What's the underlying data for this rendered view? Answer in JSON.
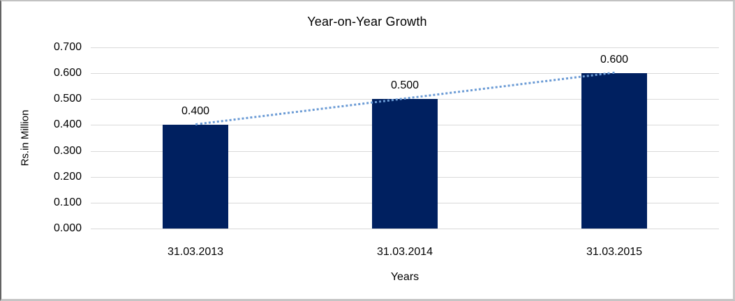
{
  "chart_data": {
    "type": "bar",
    "title": "Year-on-Year Growth",
    "xlabel": "Years",
    "ylabel": "Rs.in Million",
    "categories": [
      "31.03.2013",
      "31.03.2014",
      "31.03.2015"
    ],
    "values": [
      0.4,
      0.5,
      0.6
    ],
    "data_labels": [
      "0.400",
      "0.500",
      "0.600"
    ],
    "yticks": [
      "0.000",
      "0.100",
      "0.200",
      "0.300",
      "0.400",
      "0.500",
      "0.600",
      "0.700"
    ],
    "ylim": [
      0,
      0.7
    ],
    "grid": true,
    "legend": "none",
    "bar_color": "#002060",
    "gridline_color": "#d9d9d9",
    "trendline": {
      "style": "dotted",
      "color": "#6b9bd5",
      "from_value": 0.4,
      "to_value": 0.6
    }
  }
}
